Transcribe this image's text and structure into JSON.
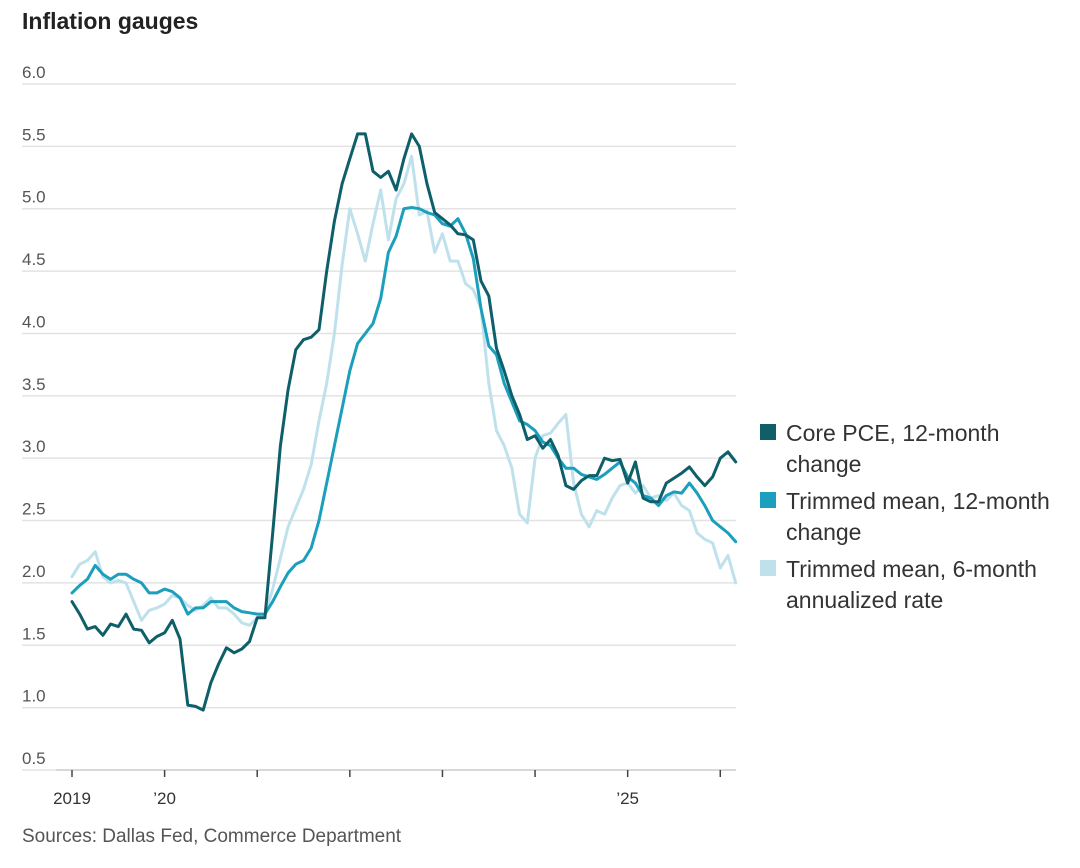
{
  "title": "Inflation gauges",
  "source": "Sources: Dallas Fed, Commerce Department",
  "chart_data": {
    "type": "line",
    "ylim": [
      0.5,
      6.0
    ],
    "yticks": [
      "6.0",
      "5.5",
      "5.0",
      "4.5",
      "4.0",
      "3.5",
      "3.0",
      "2.5",
      "2.0",
      "1.5",
      "1.0",
      "0.5"
    ],
    "xrange": [
      0,
      85
    ],
    "xticks": [
      {
        "pos": 0,
        "label": "2019"
      },
      {
        "pos": 12,
        "label": "’20"
      },
      {
        "pos": 24,
        "label": ""
      },
      {
        "pos": 36,
        "label": ""
      },
      {
        "pos": 48,
        "label": ""
      },
      {
        "pos": 60,
        "label": ""
      },
      {
        "pos": 72,
        "label": "’25"
      },
      {
        "pos": 84,
        "label": ""
      }
    ],
    "grid": true,
    "series": [
      {
        "name": "Core PCE, 12-month change",
        "color": "#0e5f69",
        "values": [
          1.85,
          1.75,
          1.63,
          1.65,
          1.58,
          1.67,
          1.65,
          1.75,
          1.63,
          1.62,
          1.52,
          1.57,
          1.6,
          1.7,
          1.55,
          1.02,
          1.01,
          0.98,
          1.2,
          1.35,
          1.48,
          1.44,
          1.47,
          1.53,
          1.72,
          1.72,
          2.4,
          3.1,
          3.55,
          3.87,
          3.95,
          3.97,
          4.03,
          4.5,
          4.9,
          5.2,
          5.4,
          5.6,
          5.6,
          5.3,
          5.25,
          5.3,
          5.15,
          5.4,
          5.6,
          5.5,
          5.2,
          4.97,
          4.92,
          4.87,
          4.8,
          4.79,
          4.75,
          4.42,
          4.3,
          3.88,
          3.7,
          3.5,
          3.35,
          3.15,
          3.18,
          3.08,
          3.15,
          3.02,
          2.78,
          2.75,
          2.82,
          2.86,
          2.86,
          3.0,
          2.98,
          2.99,
          2.8,
          2.97,
          2.68,
          2.65,
          2.65,
          2.8,
          2.84,
          2.88,
          2.93,
          2.85,
          2.78,
          2.85,
          3.0,
          3.05,
          2.97
        ]
      },
      {
        "name": "Trimmed mean, 12-month change",
        "color": "#1b9fbd",
        "values": [
          1.92,
          1.98,
          2.03,
          2.14,
          2.07,
          2.03,
          2.07,
          2.07,
          2.03,
          2.0,
          1.92,
          1.92,
          1.95,
          1.93,
          1.88,
          1.75,
          1.8,
          1.8,
          1.85,
          1.85,
          1.85,
          1.8,
          1.77,
          1.76,
          1.75,
          1.75,
          1.85,
          1.97,
          2.08,
          2.15,
          2.18,
          2.28,
          2.5,
          2.8,
          3.1,
          3.4,
          3.7,
          3.92,
          4.0,
          4.08,
          4.28,
          4.65,
          4.78,
          5.0,
          5.01,
          5.0,
          4.97,
          4.95,
          4.88,
          4.86,
          4.92,
          4.8,
          4.6,
          4.2,
          3.9,
          3.83,
          3.6,
          3.45,
          3.3,
          3.27,
          3.22,
          3.13,
          3.1,
          3.0,
          2.92,
          2.92,
          2.87,
          2.85,
          2.83,
          2.87,
          2.92,
          2.97,
          2.85,
          2.8,
          2.7,
          2.68,
          2.62,
          2.7,
          2.73,
          2.72,
          2.8,
          2.72,
          2.62,
          2.5,
          2.45,
          2.4,
          2.33
        ]
      },
      {
        "name": "Trimmed mean, 6-month annualized rate",
        "color": "#bfe1ec",
        "values": [
          2.05,
          2.15,
          2.18,
          2.25,
          2.05,
          2.0,
          2.02,
          2.0,
          1.85,
          1.7,
          1.78,
          1.8,
          1.83,
          1.9,
          1.88,
          1.82,
          1.78,
          1.82,
          1.88,
          1.8,
          1.8,
          1.75,
          1.68,
          1.66,
          1.72,
          1.75,
          1.95,
          2.2,
          2.45,
          2.6,
          2.75,
          2.95,
          3.3,
          3.6,
          4.0,
          4.55,
          5.0,
          4.8,
          4.58,
          4.88,
          5.15,
          4.75,
          5.08,
          5.2,
          5.42,
          4.95,
          4.98,
          4.65,
          4.8,
          4.58,
          4.58,
          4.4,
          4.35,
          4.2,
          3.6,
          3.22,
          3.1,
          2.92,
          2.55,
          2.48,
          3.0,
          3.18,
          3.2,
          3.28,
          3.35,
          2.8,
          2.55,
          2.45,
          2.58,
          2.55,
          2.68,
          2.78,
          2.8,
          2.72,
          2.78,
          2.68,
          2.7,
          2.66,
          2.72,
          2.62,
          2.58,
          2.4,
          2.35,
          2.32,
          2.12,
          2.22,
          2.0
        ]
      }
    ]
  }
}
